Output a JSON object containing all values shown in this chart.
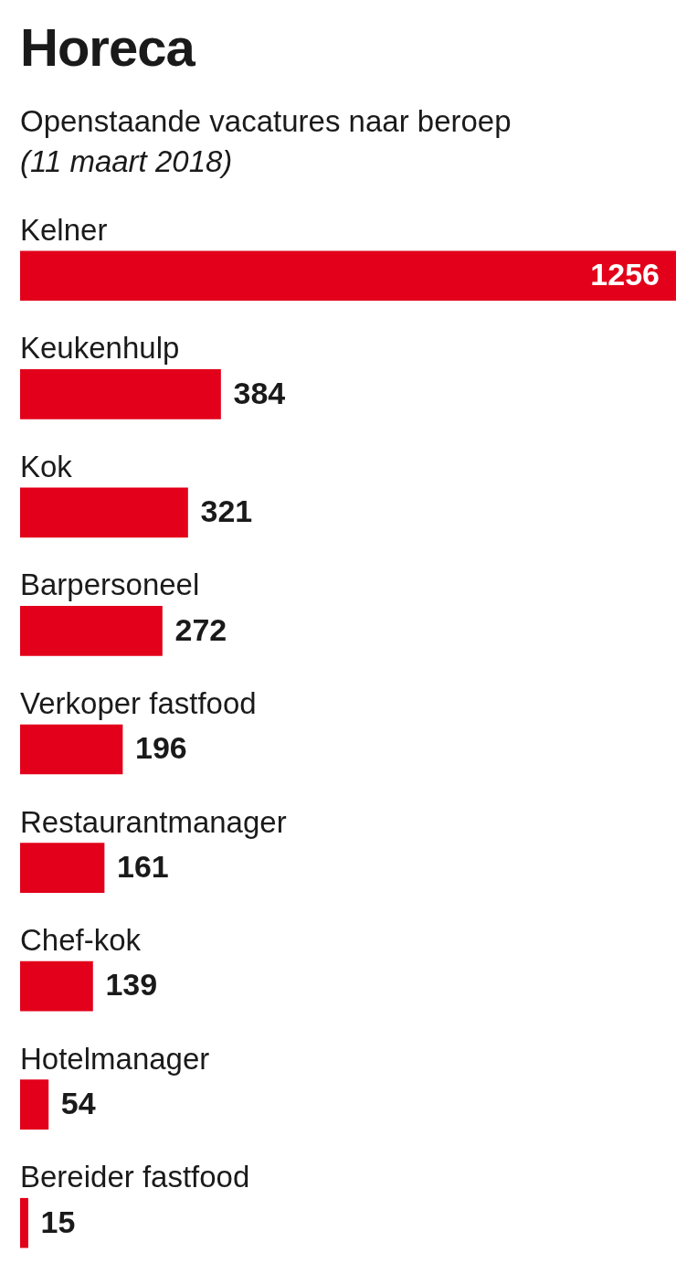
{
  "chart_data": {
    "type": "bar",
    "orientation": "horizontal",
    "title": "Horeca",
    "subtitle": "Openstaande vacatures naar beroep",
    "annotations": [
      "(11 maart 2018)"
    ],
    "categories": [
      "Kelner",
      "Keukenhulp",
      "Kok",
      "Barpersoneel",
      "Verkoper fastfood",
      "Restaurantmanager",
      "Chef-kok",
      "Hotelmanager",
      "Bereider fastfood"
    ],
    "values": [
      1256,
      384,
      321,
      272,
      196,
      161,
      139,
      54,
      15
    ],
    "color": "#e2001a",
    "data_labels": true
  }
}
